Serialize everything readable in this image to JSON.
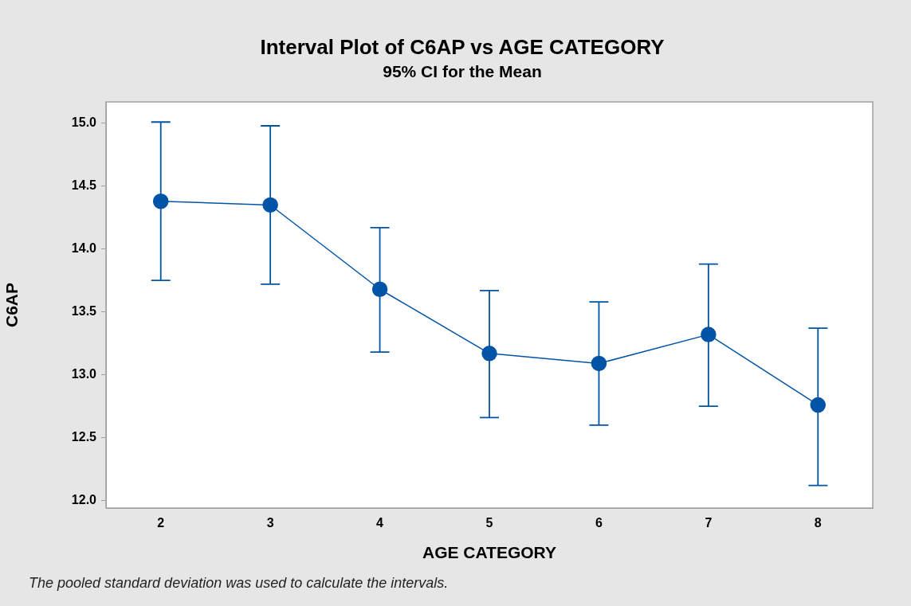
{
  "chart_data": {
    "type": "line",
    "title": "Interval Plot of C6AP vs AGE CATEGORY",
    "subtitle": "95% CI for the Mean",
    "xlabel": "AGE CATEGORY",
    "ylabel": "C6AP",
    "categories": [
      "2",
      "3",
      "4",
      "5",
      "6",
      "7",
      "8"
    ],
    "series": [
      {
        "color": "#0054a6",
        "values": [
          14.38,
          14.35,
          13.68,
          13.17,
          13.09,
          13.32,
          12.76
        ],
        "errors": [
          [
            13.75,
            15.01
          ],
          [
            13.72,
            14.98
          ],
          [
            13.18,
            14.17
          ],
          [
            12.66,
            13.67
          ],
          [
            12.6,
            13.58
          ],
          [
            12.75,
            13.88
          ],
          [
            12.12,
            13.37
          ]
        ]
      }
    ],
    "ylim": [
      11.94,
      15.17
    ],
    "yticks": [
      {
        "value": 12,
        "label": "12.0"
      },
      {
        "value": 12.5,
        "label": "12.5"
      },
      {
        "value": 13,
        "label": "13.0"
      },
      {
        "value": 13.5,
        "label": "13.5"
      },
      {
        "value": 14,
        "label": "14.0"
      },
      {
        "value": 14.5,
        "label": "14.5"
      },
      {
        "value": 15,
        "label": "15.0"
      }
    ],
    "grid": false,
    "marker": "circle",
    "line_style": "solid",
    "annotations": [
      "The pooled standard deviation was used to calculate the intervals."
    ]
  }
}
